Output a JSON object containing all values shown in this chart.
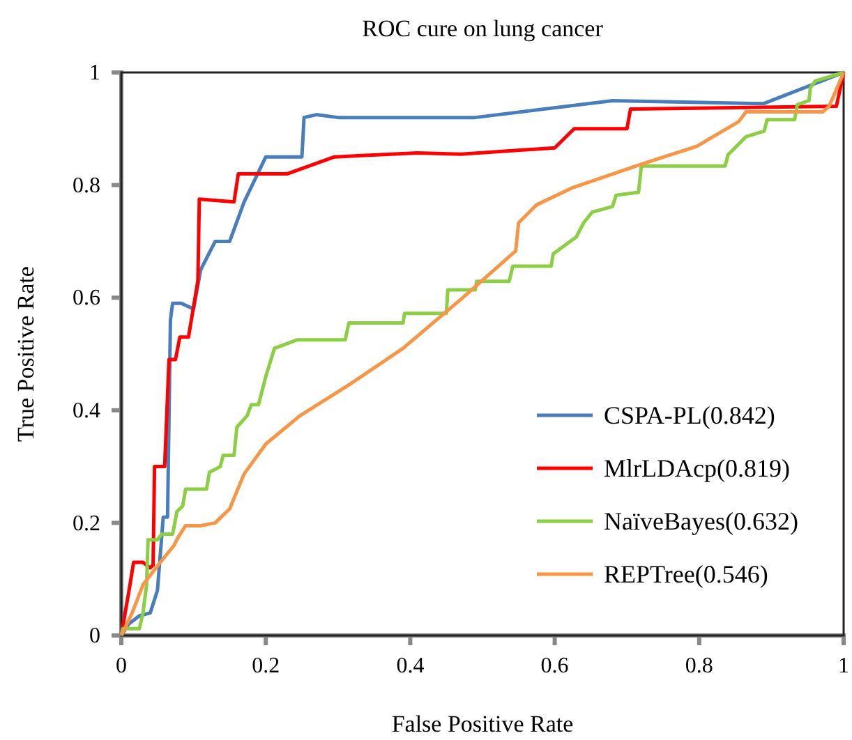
{
  "chart_data": {
    "type": "line",
    "title": "ROC cure on lung cancer",
    "xlabel": "False Positive Rate",
    "ylabel": "True Positive Rate",
    "xlim": [
      0,
      1
    ],
    "ylim": [
      0,
      1
    ],
    "xticks": [
      0,
      0.2,
      0.4,
      0.6,
      0.8,
      1
    ],
    "yticks": [
      0,
      0.2,
      0.4,
      0.6,
      0.8,
      1
    ],
    "grid": false,
    "legend": "bottom right",
    "marker": "none",
    "line_style": "solid",
    "series": [
      {
        "name": "CSPA-PL(0.842)",
        "color": "#4a7ebb",
        "x": [
          0,
          0.01,
          0.025,
          0.04,
          0.05,
          0.055,
          0.058,
          0.064,
          0.068,
          0.071,
          0.083,
          0.1,
          0.11,
          0.13,
          0.15,
          0.17,
          0.2,
          0.25,
          0.253,
          0.27,
          0.3,
          0.49,
          0.68,
          0.875,
          0.89,
          1
        ],
        "values": [
          0,
          0.02,
          0.035,
          0.04,
          0.08,
          0.16,
          0.21,
          0.21,
          0.56,
          0.59,
          0.59,
          0.58,
          0.65,
          0.7,
          0.7,
          0.77,
          0.85,
          0.85,
          0.92,
          0.925,
          0.92,
          0.92,
          0.95,
          0.945,
          0.945,
          1
        ]
      },
      {
        "name": "MlrLDAcp(0.819)",
        "color": "#ff0000",
        "x": [
          0,
          0.012,
          0.017,
          0.03,
          0.04,
          0.044,
          0.046,
          0.06,
          0.066,
          0.075,
          0.081,
          0.093,
          0.106,
          0.108,
          0.156,
          0.162,
          0.23,
          0.295,
          0.41,
          0.47,
          0.6,
          0.627,
          0.7,
          0.705,
          0.99,
          1
        ],
        "values": [
          0,
          0.09,
          0.13,
          0.13,
          0.12,
          0.125,
          0.3,
          0.3,
          0.49,
          0.49,
          0.53,
          0.53,
          0.63,
          0.775,
          0.77,
          0.82,
          0.82,
          0.85,
          0.857,
          0.855,
          0.866,
          0.9,
          0.9,
          0.935,
          0.94,
          1
        ]
      },
      {
        "name": "NaïveBayes(0.632)",
        "color": "#8ccf45",
        "x": [
          0,
          0.002,
          0.025,
          0.03,
          0.035,
          0.037,
          0.05,
          0.056,
          0.071,
          0.077,
          0.085,
          0.089,
          0.118,
          0.122,
          0.137,
          0.141,
          0.156,
          0.16,
          0.174,
          0.18,
          0.19,
          0.2,
          0.212,
          0.243,
          0.31,
          0.315,
          0.33,
          0.39,
          0.392,
          0.45,
          0.452,
          0.49,
          0.492,
          0.537,
          0.542,
          0.595,
          0.598,
          0.63,
          0.64,
          0.652,
          0.68,
          0.685,
          0.716,
          0.72,
          0.836,
          0.84,
          0.865,
          0.89,
          0.894,
          0.932,
          0.936,
          0.952,
          0.954,
          0.961,
          1
        ],
        "values": [
          0,
          0.012,
          0.012,
          0.04,
          0.09,
          0.17,
          0.17,
          0.18,
          0.18,
          0.22,
          0.23,
          0.26,
          0.26,
          0.29,
          0.3,
          0.32,
          0.32,
          0.37,
          0.39,
          0.41,
          0.41,
          0.46,
          0.51,
          0.525,
          0.525,
          0.555,
          0.555,
          0.555,
          0.572,
          0.572,
          0.614,
          0.614,
          0.629,
          0.629,
          0.656,
          0.656,
          0.678,
          0.708,
          0.733,
          0.752,
          0.762,
          0.782,
          0.787,
          0.834,
          0.834,
          0.854,
          0.886,
          0.896,
          0.916,
          0.916,
          0.943,
          0.95,
          0.973,
          0.985,
          1
        ]
      },
      {
        "name": "REPTree(0.546)",
        "color": "#f79646",
        "x": [
          0,
          0.015,
          0.03,
          0.054,
          0.073,
          0.079,
          0.089,
          0.11,
          0.13,
          0.15,
          0.17,
          0.2,
          0.247,
          0.315,
          0.39,
          0.47,
          0.546,
          0.55,
          0.575,
          0.624,
          0.72,
          0.797,
          0.855,
          0.865,
          0.971,
          0.98,
          1
        ],
        "values": [
          0,
          0.04,
          0.09,
          0.13,
          0.16,
          0.175,
          0.195,
          0.195,
          0.2,
          0.225,
          0.287,
          0.34,
          0.39,
          0.445,
          0.51,
          0.597,
          0.683,
          0.733,
          0.765,
          0.795,
          0.837,
          0.869,
          0.913,
          0.93,
          0.93,
          0.94,
          1
        ]
      }
    ]
  }
}
